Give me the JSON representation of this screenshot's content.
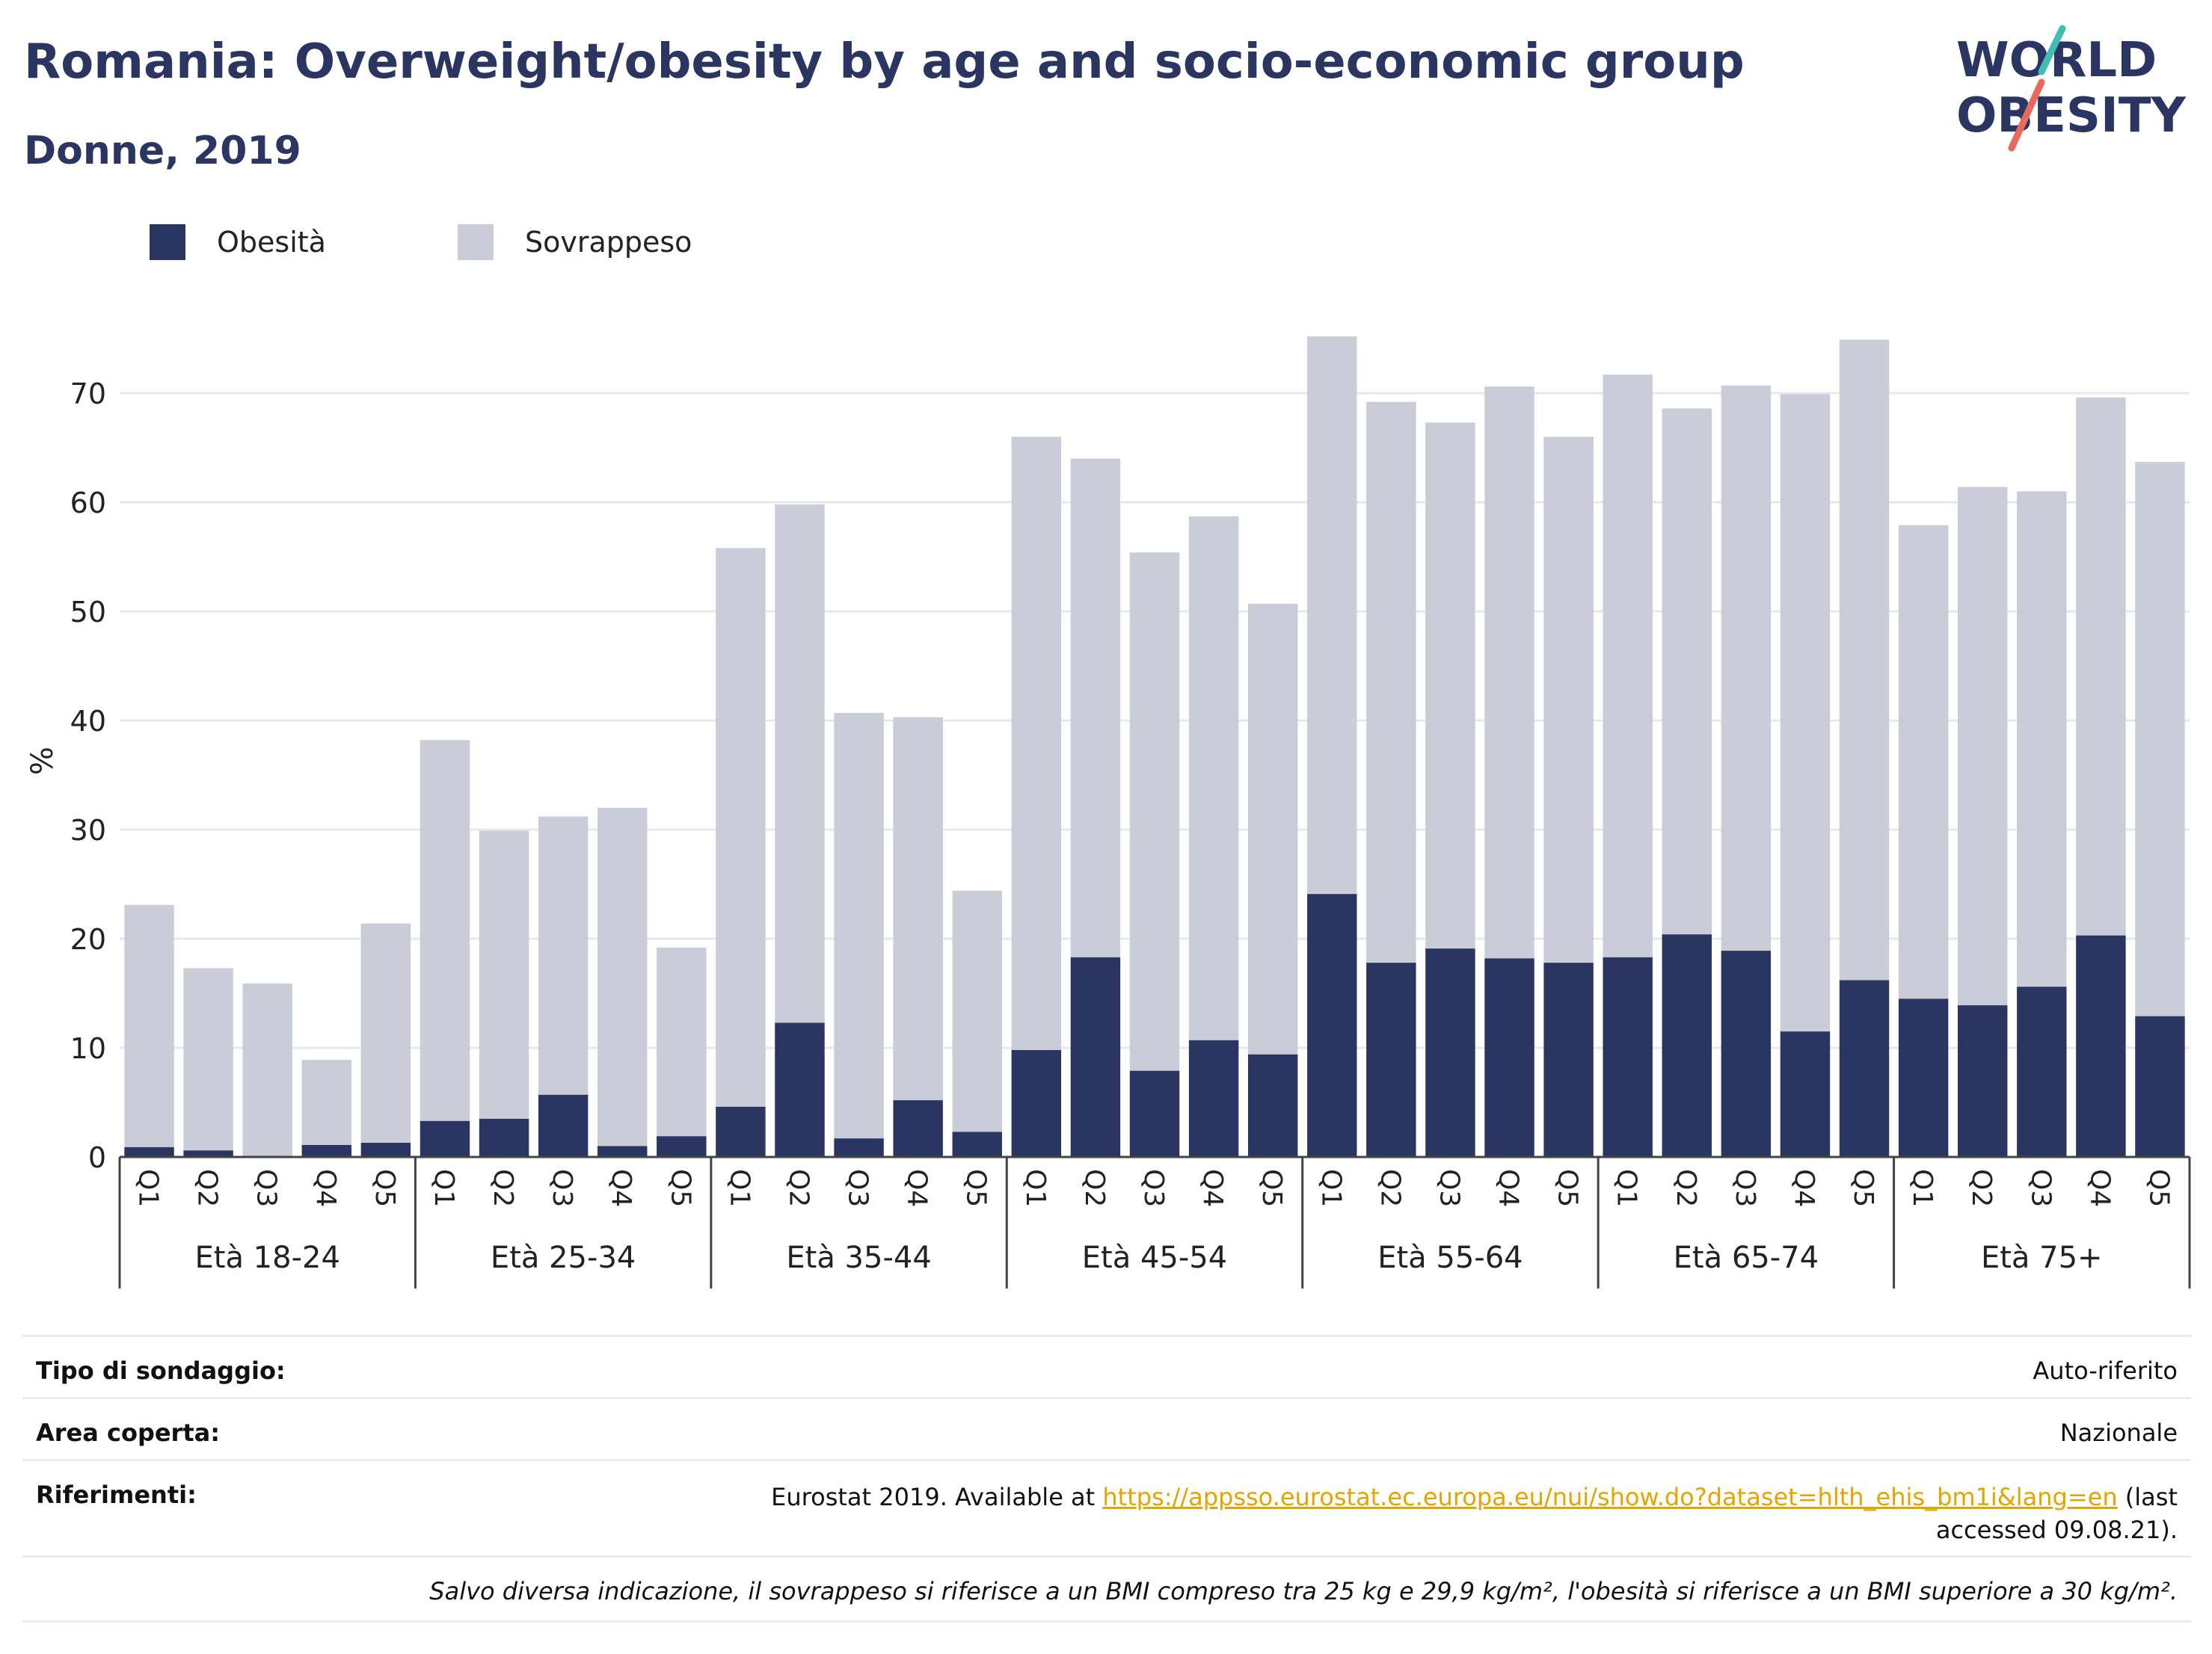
{
  "header": {
    "title": "Romania: Overweight/obesity by age and socio-economic group",
    "subtitle": "Donne, 2019"
  },
  "logo": {
    "line1": "WORLD",
    "line2": "OBESITY"
  },
  "colors": {
    "obesity": "#2a3561",
    "overweight": "#caccd8",
    "accent_teal": "#3fbfb2",
    "accent_red": "#e86a5e"
  },
  "legend": [
    {
      "label": "Obesità",
      "color": "#2a3561"
    },
    {
      "label": "Sovrappeso",
      "color": "#caccd8"
    }
  ],
  "chart_data": {
    "type": "bar",
    "stacked": true,
    "ylabel": "%",
    "ylim": [
      0,
      80
    ],
    "yticks": [
      0,
      10,
      20,
      30,
      40,
      50,
      60,
      70
    ],
    "grid": true,
    "legend_position": "top-left",
    "quintiles": [
      "Q1",
      "Q2",
      "Q3",
      "Q4",
      "Q5"
    ],
    "groups": [
      {
        "label": "Età 18-24",
        "obesity": [
          0.9,
          0.6,
          0.0,
          1.1,
          1.3
        ],
        "total": [
          23.1,
          17.3,
          15.9,
          8.9,
          21.4
        ]
      },
      {
        "label": "Età 25-34",
        "obesity": [
          3.3,
          3.5,
          5.7,
          1.0,
          1.9
        ],
        "total": [
          38.2,
          29.9,
          31.2,
          32.0,
          19.2
        ]
      },
      {
        "label": "Età 35-44",
        "obesity": [
          4.6,
          12.3,
          1.7,
          5.2,
          2.3
        ],
        "total": [
          55.8,
          59.8,
          40.7,
          40.3,
          24.4
        ]
      },
      {
        "label": "Età 45-54",
        "obesity": [
          9.8,
          18.3,
          7.9,
          10.7,
          9.4
        ],
        "total": [
          66.0,
          64.0,
          55.4,
          58.7,
          50.7
        ]
      },
      {
        "label": "Età 55-64",
        "obesity": [
          24.1,
          17.8,
          19.1,
          18.2,
          17.8
        ],
        "total": [
          75.2,
          69.2,
          67.3,
          70.6,
          66.0
        ]
      },
      {
        "label": "Età 65-74",
        "obesity": [
          18.3,
          20.4,
          18.9,
          11.5,
          16.2
        ],
        "total": [
          71.7,
          68.6,
          70.7,
          69.9,
          74.9
        ]
      },
      {
        "label": "Età 75+",
        "obesity": [
          14.5,
          13.9,
          15.6,
          20.3,
          12.9
        ],
        "total": [
          57.9,
          61.4,
          61.0,
          69.6,
          63.7
        ]
      }
    ]
  },
  "info": {
    "survey_label": "Tipo di sondaggio:",
    "survey_value": "Auto-riferito",
    "area_label": "Area coperta:",
    "area_value": "Nazionale",
    "ref_label": "Riferimenti:",
    "ref_prefix": "Eurostat 2019. Available at ",
    "ref_link": "https://appsso.eurostat.ec.europa.eu/nui/show.do?dataset=hlth_ehis_bm1i&lang=en",
    "ref_suffix": " (last accessed 09.08.21).",
    "note": "Salvo diversa indicazione, il sovrappeso si riferisce a un BMI compreso tra 25 kg e 29,9 kg/m², l'obesità si riferisce a un BMI superiore a 30 kg/m²."
  }
}
